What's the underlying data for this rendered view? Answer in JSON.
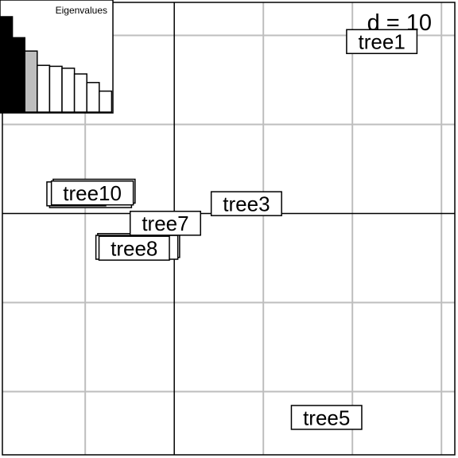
{
  "chart_data": {
    "type": "scatter",
    "scale_label": "d = 10",
    "xlim": [
      -19.3,
      31.5
    ],
    "ylim": [
      -27.1,
      23.7
    ],
    "grid_step": 10,
    "grid": true,
    "axes_at_origin": true,
    "points": [
      {
        "label": "tree1",
        "x": 23.3,
        "y": 19.3
      },
      {
        "label": "tree3",
        "x": 8.1,
        "y": 1.1
      },
      {
        "label": "tree5",
        "x": 17.1,
        "y": -22.9
      },
      {
        "label": "tree7",
        "x": -1.0,
        "y": -1.1
      },
      {
        "label": "tree8",
        "x": -4.5,
        "y": -3.9
      },
      {
        "label": "tree",
        "x": -11.0,
        "y": 2.2
      },
      {
        "label": "tree10",
        "x": -9.2,
        "y": 2.3
      }
    ],
    "stacked_label_frames": [
      {
        "x": -9.0,
        "y": 2.5
      },
      {
        "x": -9.4,
        "y": 2.0
      },
      {
        "x": -4.0,
        "y": -3.6
      },
      {
        "x": -4.2,
        "y": -3.8
      }
    ],
    "inset": {
      "title": "Eigenvalues",
      "values": [
        1.0,
        0.78,
        0.64,
        0.49,
        0.48,
        0.46,
        0.4,
        0.31,
        0.22
      ],
      "fills": [
        "#000000",
        "#000000",
        "#bebebe",
        "#ffffff",
        "#ffffff",
        "#ffffff",
        "#ffffff",
        "#ffffff",
        "#ffffff"
      ]
    }
  }
}
